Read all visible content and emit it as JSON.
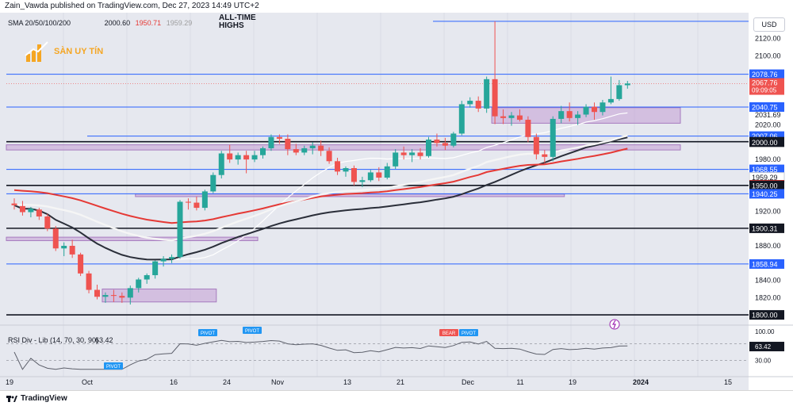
{
  "header": {
    "published": "Zain_Vawda published on TradingView.com, Dec 27, 2023 14:49 UTC+2",
    "currency": "USD"
  },
  "indicators": {
    "sma_label": "SMA 20/50/100/200",
    "sma_values": [
      "2000.60",
      "1950.71",
      "1959.29"
    ],
    "rsi_label": "RSI Div - Lib (14, 70, 30, 90)",
    "rsi_value": "63.42"
  },
  "annotation": {
    "all_time_high": "ALL-TIME HIGHS"
  },
  "watermark": {
    "brand": "SÀN UY TÍN"
  },
  "footer": {
    "brand": "TradingView"
  },
  "colors": {
    "bull": "#26a69a",
    "bear": "#ef5350",
    "zone": "#c7a3d6",
    "hline_blue": "#2962ff",
    "hline_black": "#131722",
    "sma_black": "#2a2e39",
    "sma_red": "#e53935",
    "sma_white": "#f5f5f5",
    "bg": "#e6e8ef"
  },
  "chart_data": {
    "type": "candlestick",
    "x_tick_labels": [
      "19",
      "Oct",
      "16",
      "24",
      "Nov",
      "13",
      "21",
      "Dec",
      "11",
      "19",
      "2024",
      "15"
    ],
    "y_tick_labels": [
      "2120.00",
      "2100.00",
      "2031.69",
      "2020.00",
      "1980.00",
      "1920.00",
      "1880.00",
      "1840.00",
      "1820.00"
    ],
    "ylim": [
      1790,
      2150
    ],
    "price_levels": [
      {
        "label": "2078.76",
        "value": 2078.76,
        "style": "blue"
      },
      {
        "label": "2040.75",
        "value": 2040.75,
        "style": "blue"
      },
      {
        "label": "2007.06",
        "value": 2007.06,
        "style": "blue"
      },
      {
        "label": "2000.60",
        "value": 2000.6,
        "style": "black"
      },
      {
        "label": "2000.00",
        "value": 2000.0,
        "style": "black"
      },
      {
        "label": "1968.55",
        "value": 1968.55,
        "style": "blue"
      },
      {
        "label": "1959.29",
        "value": 1959.29,
        "style": "grey"
      },
      {
        "label": "1950.71",
        "value": 1950.71,
        "style": "red"
      },
      {
        "label": "1950.00",
        "value": 1950.0,
        "style": "black"
      },
      {
        "label": "1940.25",
        "value": 1940.25,
        "style": "blue"
      },
      {
        "label": "1900.31",
        "value": 1900.31,
        "style": "black"
      },
      {
        "label": "1858.94",
        "value": 1858.94,
        "style": "blue"
      },
      {
        "label": "1800.00",
        "value": 1800.0,
        "style": "black"
      }
    ],
    "current_price": {
      "label": "2067.76",
      "value": 2067.76,
      "countdown": "09:09:05"
    },
    "ath_level": 2140,
    "candles": [
      {
        "o": 1929,
        "h": 1935,
        "l": 1922,
        "c": 1927
      },
      {
        "o": 1926,
        "h": 1932,
        "l": 1915,
        "c": 1919
      },
      {
        "o": 1919,
        "h": 1925,
        "l": 1913,
        "c": 1923
      },
      {
        "o": 1922,
        "h": 1924,
        "l": 1910,
        "c": 1914
      },
      {
        "o": 1914,
        "h": 1917,
        "l": 1897,
        "c": 1900
      },
      {
        "o": 1900,
        "h": 1903,
        "l": 1874,
        "c": 1877
      },
      {
        "o": 1877,
        "h": 1884,
        "l": 1868,
        "c": 1880
      },
      {
        "o": 1880,
        "h": 1887,
        "l": 1866,
        "c": 1870
      },
      {
        "o": 1870,
        "h": 1872,
        "l": 1845,
        "c": 1848
      },
      {
        "o": 1848,
        "h": 1851,
        "l": 1825,
        "c": 1829
      },
      {
        "o": 1829,
        "h": 1835,
        "l": 1818,
        "c": 1821
      },
      {
        "o": 1821,
        "h": 1826,
        "l": 1814,
        "c": 1823
      },
      {
        "o": 1823,
        "h": 1829,
        "l": 1815,
        "c": 1822
      },
      {
        "o": 1822,
        "h": 1826,
        "l": 1814,
        "c": 1820
      },
      {
        "o": 1820,
        "h": 1834,
        "l": 1812,
        "c": 1831
      },
      {
        "o": 1831,
        "h": 1843,
        "l": 1826,
        "c": 1841
      },
      {
        "o": 1841,
        "h": 1848,
        "l": 1836,
        "c": 1846
      },
      {
        "o": 1846,
        "h": 1863,
        "l": 1842,
        "c": 1862
      },
      {
        "o": 1862,
        "h": 1868,
        "l": 1856,
        "c": 1865
      },
      {
        "o": 1865,
        "h": 1870,
        "l": 1860,
        "c": 1867
      },
      {
        "o": 1867,
        "h": 1933,
        "l": 1865,
        "c": 1931
      },
      {
        "o": 1931,
        "h": 1935,
        "l": 1922,
        "c": 1930
      },
      {
        "o": 1930,
        "h": 1937,
        "l": 1921,
        "c": 1924
      },
      {
        "o": 1924,
        "h": 1945,
        "l": 1921,
        "c": 1943
      },
      {
        "o": 1943,
        "h": 1965,
        "l": 1941,
        "c": 1962
      },
      {
        "o": 1962,
        "h": 1990,
        "l": 1958,
        "c": 1987
      },
      {
        "o": 1987,
        "h": 1997,
        "l": 1976,
        "c": 1980
      },
      {
        "o": 1980,
        "h": 1988,
        "l": 1974,
        "c": 1985
      },
      {
        "o": 1985,
        "h": 1990,
        "l": 1964,
        "c": 1980
      },
      {
        "o": 1980,
        "h": 1990,
        "l": 1977,
        "c": 1985
      },
      {
        "o": 1985,
        "h": 1995,
        "l": 1981,
        "c": 1993
      },
      {
        "o": 1993,
        "h": 2009,
        "l": 1990,
        "c": 2006
      },
      {
        "o": 2006,
        "h": 2009,
        "l": 1998,
        "c": 2004
      },
      {
        "o": 2004,
        "h": 2009,
        "l": 1985,
        "c": 1992
      },
      {
        "o": 1992,
        "h": 1998,
        "l": 1985,
        "c": 1988
      },
      {
        "o": 1988,
        "h": 1996,
        "l": 1985,
        "c": 1993
      },
      {
        "o": 1993,
        "h": 2000,
        "l": 1986,
        "c": 1996
      },
      {
        "o": 1996,
        "h": 2002,
        "l": 1984,
        "c": 1990
      },
      {
        "o": 1990,
        "h": 1994,
        "l": 1975,
        "c": 1978
      },
      {
        "o": 1978,
        "h": 1982,
        "l": 1962,
        "c": 1966
      },
      {
        "o": 1966,
        "h": 1972,
        "l": 1960,
        "c": 1970
      },
      {
        "o": 1970,
        "h": 1973,
        "l": 1950,
        "c": 1954
      },
      {
        "o": 1954,
        "h": 1960,
        "l": 1948,
        "c": 1956
      },
      {
        "o": 1956,
        "h": 1968,
        "l": 1954,
        "c": 1965
      },
      {
        "o": 1965,
        "h": 1971,
        "l": 1955,
        "c": 1959
      },
      {
        "o": 1959,
        "h": 1976,
        "l": 1957,
        "c": 1972
      },
      {
        "o": 1972,
        "h": 1992,
        "l": 1969,
        "c": 1988
      },
      {
        "o": 1988,
        "h": 1995,
        "l": 1980,
        "c": 1985
      },
      {
        "o": 1985,
        "h": 1992,
        "l": 1977,
        "c": 1988
      },
      {
        "o": 1988,
        "h": 1993,
        "l": 1980,
        "c": 1984
      },
      {
        "o": 1984,
        "h": 2006,
        "l": 1982,
        "c": 2003
      },
      {
        "o": 2003,
        "h": 2010,
        "l": 1995,
        "c": 1999
      },
      {
        "o": 1999,
        "h": 2005,
        "l": 1991,
        "c": 1996
      },
      {
        "o": 1996,
        "h": 2012,
        "l": 1994,
        "c": 2010
      },
      {
        "o": 2010,
        "h": 2048,
        "l": 2008,
        "c": 2044
      },
      {
        "o": 2044,
        "h": 2052,
        "l": 2040,
        "c": 2048
      },
      {
        "o": 2048,
        "h": 2053,
        "l": 2035,
        "c": 2039
      },
      {
        "o": 2039,
        "h": 2076,
        "l": 2034,
        "c": 2073
      },
      {
        "o": 2073,
        "h": 2140,
        "l": 2021,
        "c": 2030
      },
      {
        "o": 2030,
        "h": 2038,
        "l": 2021,
        "c": 2028
      },
      {
        "o": 2028,
        "h": 2035,
        "l": 2019,
        "c": 2031
      },
      {
        "o": 2031,
        "h": 2038,
        "l": 2024,
        "c": 2026
      },
      {
        "o": 2026,
        "h": 2030,
        "l": 2000,
        "c": 2006
      },
      {
        "o": 2006,
        "h": 2010,
        "l": 1980,
        "c": 1986
      },
      {
        "o": 1986,
        "h": 1991,
        "l": 1976,
        "c": 1983
      },
      {
        "o": 1983,
        "h": 2030,
        "l": 1978,
        "c": 2027
      },
      {
        "o": 2027,
        "h": 2042,
        "l": 2022,
        "c": 2036
      },
      {
        "o": 2036,
        "h": 2046,
        "l": 2024,
        "c": 2028
      },
      {
        "o": 2028,
        "h": 2036,
        "l": 2020,
        "c": 2032
      },
      {
        "o": 2032,
        "h": 2044,
        "l": 2029,
        "c": 2041
      },
      {
        "o": 2041,
        "h": 2046,
        "l": 2026,
        "c": 2035
      },
      {
        "o": 2035,
        "h": 2049,
        "l": 2031,
        "c": 2046
      },
      {
        "o": 2046,
        "h": 2076,
        "l": 2044,
        "c": 2050
      },
      {
        "o": 2050,
        "h": 2072,
        "l": 2048,
        "c": 2066
      },
      {
        "o": 2066,
        "h": 2071,
        "l": 2062,
        "c": 2068
      }
    ],
    "zones": [
      {
        "from_index": 58,
        "to_index": 80,
        "low": 2022,
        "high": 2040
      },
      {
        "from_index": 0,
        "to_index": 80,
        "low": 1991,
        "high": 1997
      },
      {
        "from_index": 15,
        "to_index": 66,
        "low": 1937,
        "high": 1940
      },
      {
        "from_index": 0,
        "to_index": 29,
        "low": 1886,
        "high": 1890
      },
      {
        "from_index": 11,
        "to_index": 24,
        "low": 1815,
        "high": 1830
      }
    ],
    "rsi": {
      "levels": [
        70,
        30
      ],
      "tick_labels": [
        "100.00",
        "63.42",
        "30.00"
      ],
      "pivot_labels": [
        "PIVOT",
        "PIVOT",
        "BEAR",
        "PIVOT",
        "PIVOT"
      ]
    }
  }
}
